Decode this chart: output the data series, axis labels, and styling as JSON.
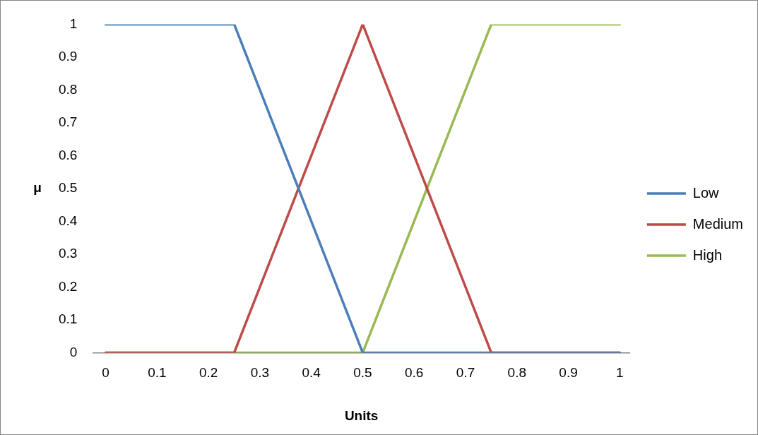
{
  "chart_data": {
    "type": "line",
    "xlabel": "Units",
    "ylabel": "μ",
    "xlim": [
      -0.025,
      1.02
    ],
    "xticks": [
      0,
      0.1,
      0.2,
      0.3,
      0.4,
      0.5,
      0.6,
      0.7,
      0.8,
      0.9,
      1
    ],
    "ylim": [
      0,
      1
    ],
    "yticks": [
      0,
      0.1,
      0.2,
      0.3,
      0.4,
      0.5,
      0.6,
      0.7,
      0.8,
      0.9,
      1
    ],
    "x": [
      0,
      0.25,
      0.5,
      0.75,
      1
    ],
    "series": [
      {
        "name": "Low",
        "color": "#4a7ebb",
        "values": [
          1,
          1,
          0,
          0,
          0
        ]
      },
      {
        "name": "Medium",
        "color": "#be4b48",
        "values": [
          0,
          0,
          1,
          0,
          0
        ]
      },
      {
        "name": "High",
        "color": "#98b954",
        "values": [
          0,
          0,
          0,
          1,
          1
        ]
      }
    ],
    "legend": "right",
    "marker": "none",
    "line_style": "solid"
  }
}
